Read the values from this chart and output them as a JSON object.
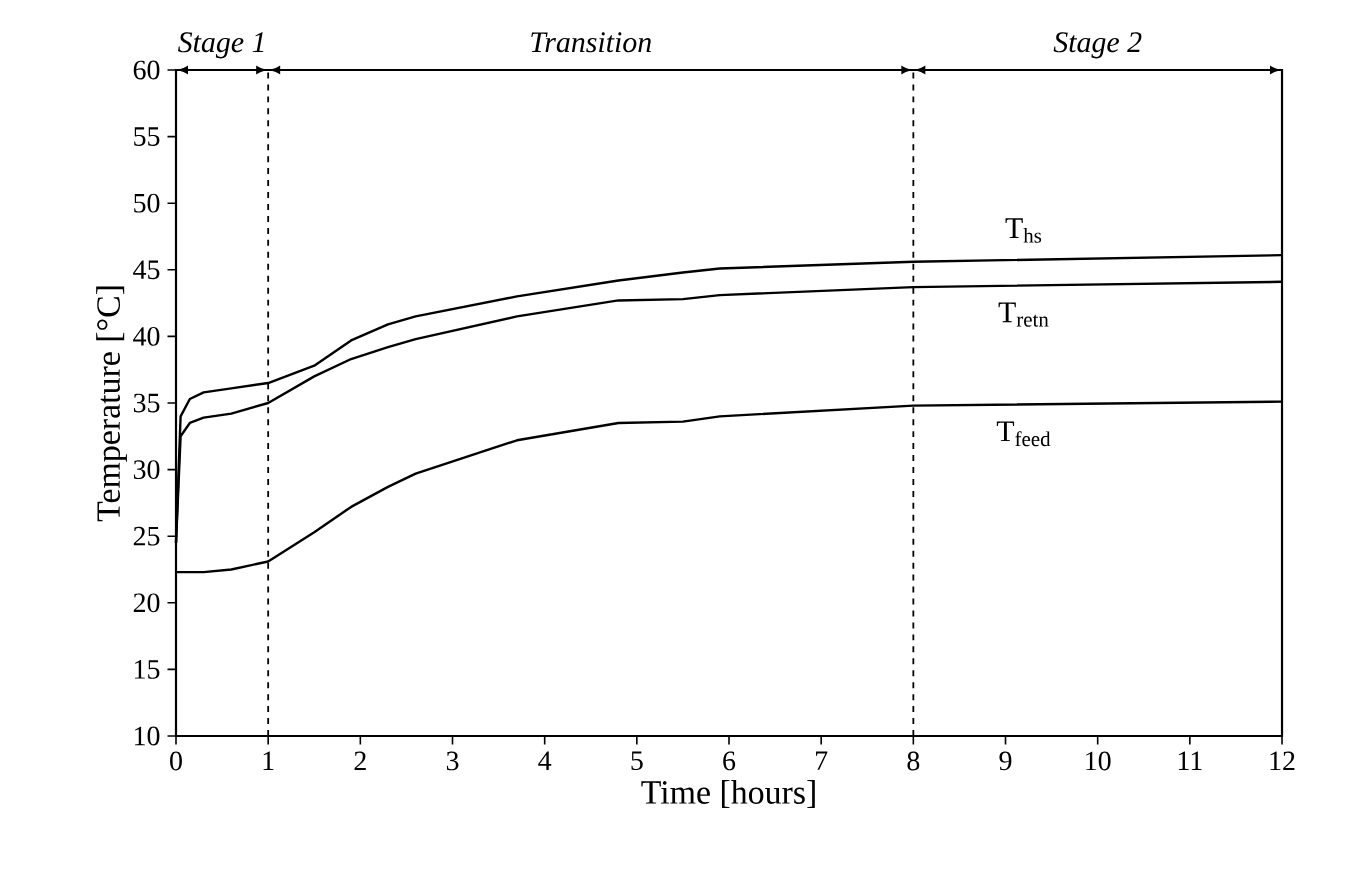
{
  "chart_data": {
    "type": "line",
    "xlabel": "Time [hours]",
    "ylabel": "Temperature [°C]",
    "x": [
      0,
      0.05,
      0.15,
      0.3,
      0.6,
      1,
      1.5,
      1.9,
      2.3,
      2.6,
      3.7,
      4.8,
      5.5,
      5.9,
      8,
      12
    ],
    "series": [
      {
        "name": "T$_{hs}$",
        "color": "#000000",
        "values": [
          24.5,
          34,
          35.3,
          35.8,
          36.1,
          36.5,
          37.8,
          39.7,
          40.9,
          41.5,
          43.0,
          44.2,
          44.8,
          45.1,
          45.6,
          46.1
        ]
      },
      {
        "name": "T$_{retn}$",
        "color": "#000000",
        "values": [
          24.5,
          32.5,
          33.5,
          33.9,
          34.2,
          35.0,
          37.0,
          38.3,
          39.2,
          39.8,
          41.5,
          42.7,
          42.8,
          43.1,
          43.7,
          44.1
        ]
      },
      {
        "name": "T$_{feed}$",
        "color": "#000000",
        "values": [
          22.3,
          22.3,
          22.3,
          22.3,
          22.5,
          23.1,
          25.3,
          27.2,
          28.7,
          29.7,
          32.2,
          33.5,
          33.6,
          34.0,
          34.8,
          35.1
        ]
      }
    ],
    "xlim": [
      0,
      12
    ],
    "xticks": [
      0,
      1,
      2,
      3,
      4,
      5,
      6,
      7,
      8,
      9,
      10,
      11,
      12
    ],
    "ylim": [
      10,
      60
    ],
    "yticks": [
      10,
      15,
      20,
      25,
      30,
      35,
      40,
      45,
      50,
      55,
      60
    ],
    "ref_lines": [
      {
        "axis": "x",
        "value": 1,
        "line_style": "dashed"
      },
      {
        "axis": "x",
        "value": 8,
        "line_style": "dashed"
      }
    ],
    "annotations": [
      "Stage 1",
      "Transition",
      "Stage 2"
    ],
    "grid": false,
    "legend": false,
    "marker": "none",
    "line_style": "solid"
  }
}
